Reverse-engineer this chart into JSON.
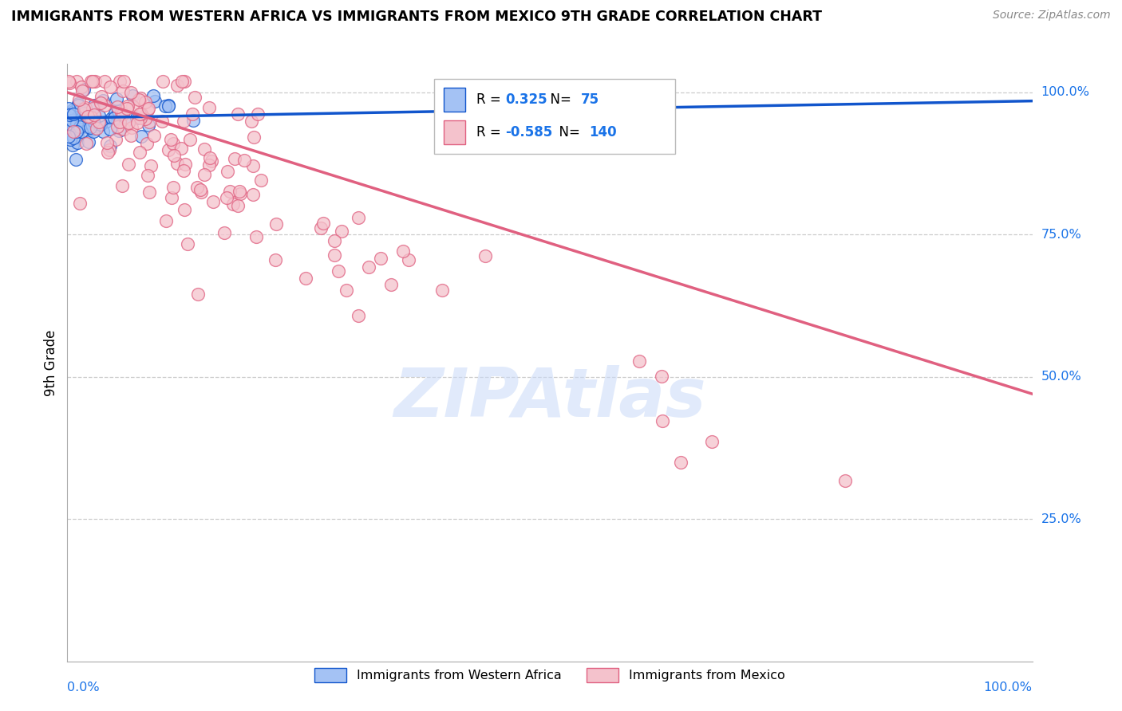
{
  "title": "IMMIGRANTS FROM WESTERN AFRICA VS IMMIGRANTS FROM MEXICO 9TH GRADE CORRELATION CHART",
  "source": "Source: ZipAtlas.com",
  "ylabel": "9th Grade",
  "blue_R": 0.325,
  "blue_N": 75,
  "pink_R": -0.585,
  "pink_N": 140,
  "blue_fill": "#a4c2f4",
  "blue_edge": "#1155cc",
  "pink_fill": "#f4c2cc",
  "pink_edge": "#e06080",
  "blue_line": "#1155cc",
  "pink_line": "#e06080",
  "value_color": "#1a73e8",
  "legend_label_blue": "Immigrants from Western Africa",
  "legend_label_pink": "Immigrants from Mexico",
  "ytick_vals": [
    0.25,
    0.5,
    0.75,
    1.0
  ],
  "ytick_labels": [
    "25.0%",
    "50.0%",
    "75.0%",
    "100.0%"
  ],
  "watermark_text": "ZIPAtlas",
  "watermark_color": "#c9daf8",
  "background": "#ffffff",
  "blue_seed": 42,
  "pink_seed": 123
}
